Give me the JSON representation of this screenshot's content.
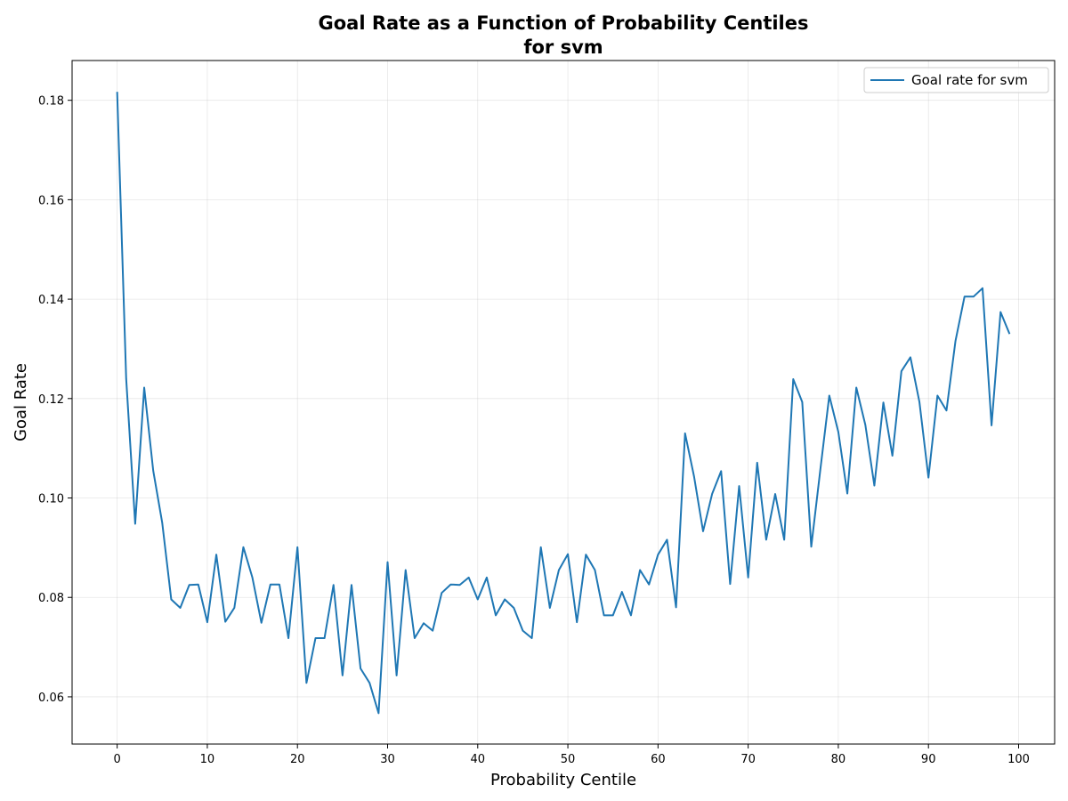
{
  "chart_data": {
    "type": "line",
    "title_line1": "Goal Rate as a Function of Probability Centiles",
    "title_line2": "for svm",
    "xlabel": "Probability Centile",
    "ylabel": "Goal Rate",
    "xlim": [
      -5,
      104
    ],
    "ylim": [
      0.0505,
      0.188
    ],
    "x_ticks": [
      0,
      10,
      20,
      30,
      40,
      50,
      60,
      70,
      80,
      90,
      100
    ],
    "y_ticks": [
      0.06,
      0.08,
      0.1,
      0.12,
      0.14,
      0.16,
      0.18
    ],
    "x_tick_labels": [
      "0",
      "10",
      "20",
      "30",
      "40",
      "50",
      "60",
      "70",
      "80",
      "90",
      "100"
    ],
    "y_tick_labels": [
      "0.06",
      "0.08",
      "0.10",
      "0.12",
      "0.14",
      "0.16",
      "0.18"
    ],
    "grid": true,
    "legend_position": "top-right",
    "series": [
      {
        "name": "Goal rate for svm",
        "color": "#1f77b4",
        "x": [
          0,
          1,
          2,
          3,
          4,
          5,
          6,
          7,
          8,
          9,
          10,
          11,
          12,
          13,
          14,
          15,
          16,
          17,
          18,
          19,
          20,
          21,
          22,
          23,
          24,
          25,
          26,
          27,
          28,
          29,
          30,
          31,
          32,
          33,
          34,
          35,
          36,
          37,
          38,
          39,
          40,
          41,
          42,
          43,
          44,
          45,
          46,
          47,
          48,
          49,
          50,
          51,
          52,
          53,
          54,
          55,
          56,
          57,
          58,
          59,
          60,
          61,
          62,
          63,
          64,
          65,
          66,
          67,
          68,
          69,
          70,
          71,
          72,
          73,
          74,
          75,
          76,
          77,
          78,
          79,
          80,
          81,
          82,
          83,
          84,
          85,
          86,
          87,
          88,
          89,
          90,
          91,
          92,
          93,
          94,
          95,
          96,
          97,
          98,
          99
        ],
        "y": [
          0.1817,
          0.124,
          0.0948,
          0.1222,
          0.1055,
          0.095,
          0.0796,
          0.0779,
          0.0825,
          0.0826,
          0.075,
          0.0886,
          0.0751,
          0.0779,
          0.0901,
          0.084,
          0.0749,
          0.0826,
          0.0826,
          0.0718,
          0.0901,
          0.0628,
          0.0718,
          0.0718,
          0.0825,
          0.0643,
          0.0825,
          0.0657,
          0.0628,
          0.0567,
          0.0871,
          0.0643,
          0.0855,
          0.0718,
          0.0748,
          0.0733,
          0.0809,
          0.0826,
          0.0825,
          0.084,
          0.0796,
          0.084,
          0.0764,
          0.0796,
          0.0779,
          0.0733,
          0.0718,
          0.0901,
          0.0779,
          0.0855,
          0.0887,
          0.075,
          0.0886,
          0.0855,
          0.0764,
          0.0764,
          0.0811,
          0.0764,
          0.0855,
          0.0826,
          0.0886,
          0.0916,
          0.078,
          0.113,
          0.1043,
          0.0933,
          0.1008,
          0.1054,
          0.0827,
          0.1024,
          0.084,
          0.1071,
          0.0916,
          0.1008,
          0.0916,
          0.1239,
          0.1193,
          0.0902,
          0.1056,
          0.1206,
          0.1133,
          0.1009,
          0.1222,
          0.1147,
          0.1025,
          0.1192,
          0.1085,
          0.1255,
          0.1283,
          0.1193,
          0.1041,
          0.1206,
          0.1176,
          0.1316,
          0.1405,
          0.1405,
          0.1422,
          0.1146,
          0.1374,
          0.133
        ]
      }
    ]
  }
}
